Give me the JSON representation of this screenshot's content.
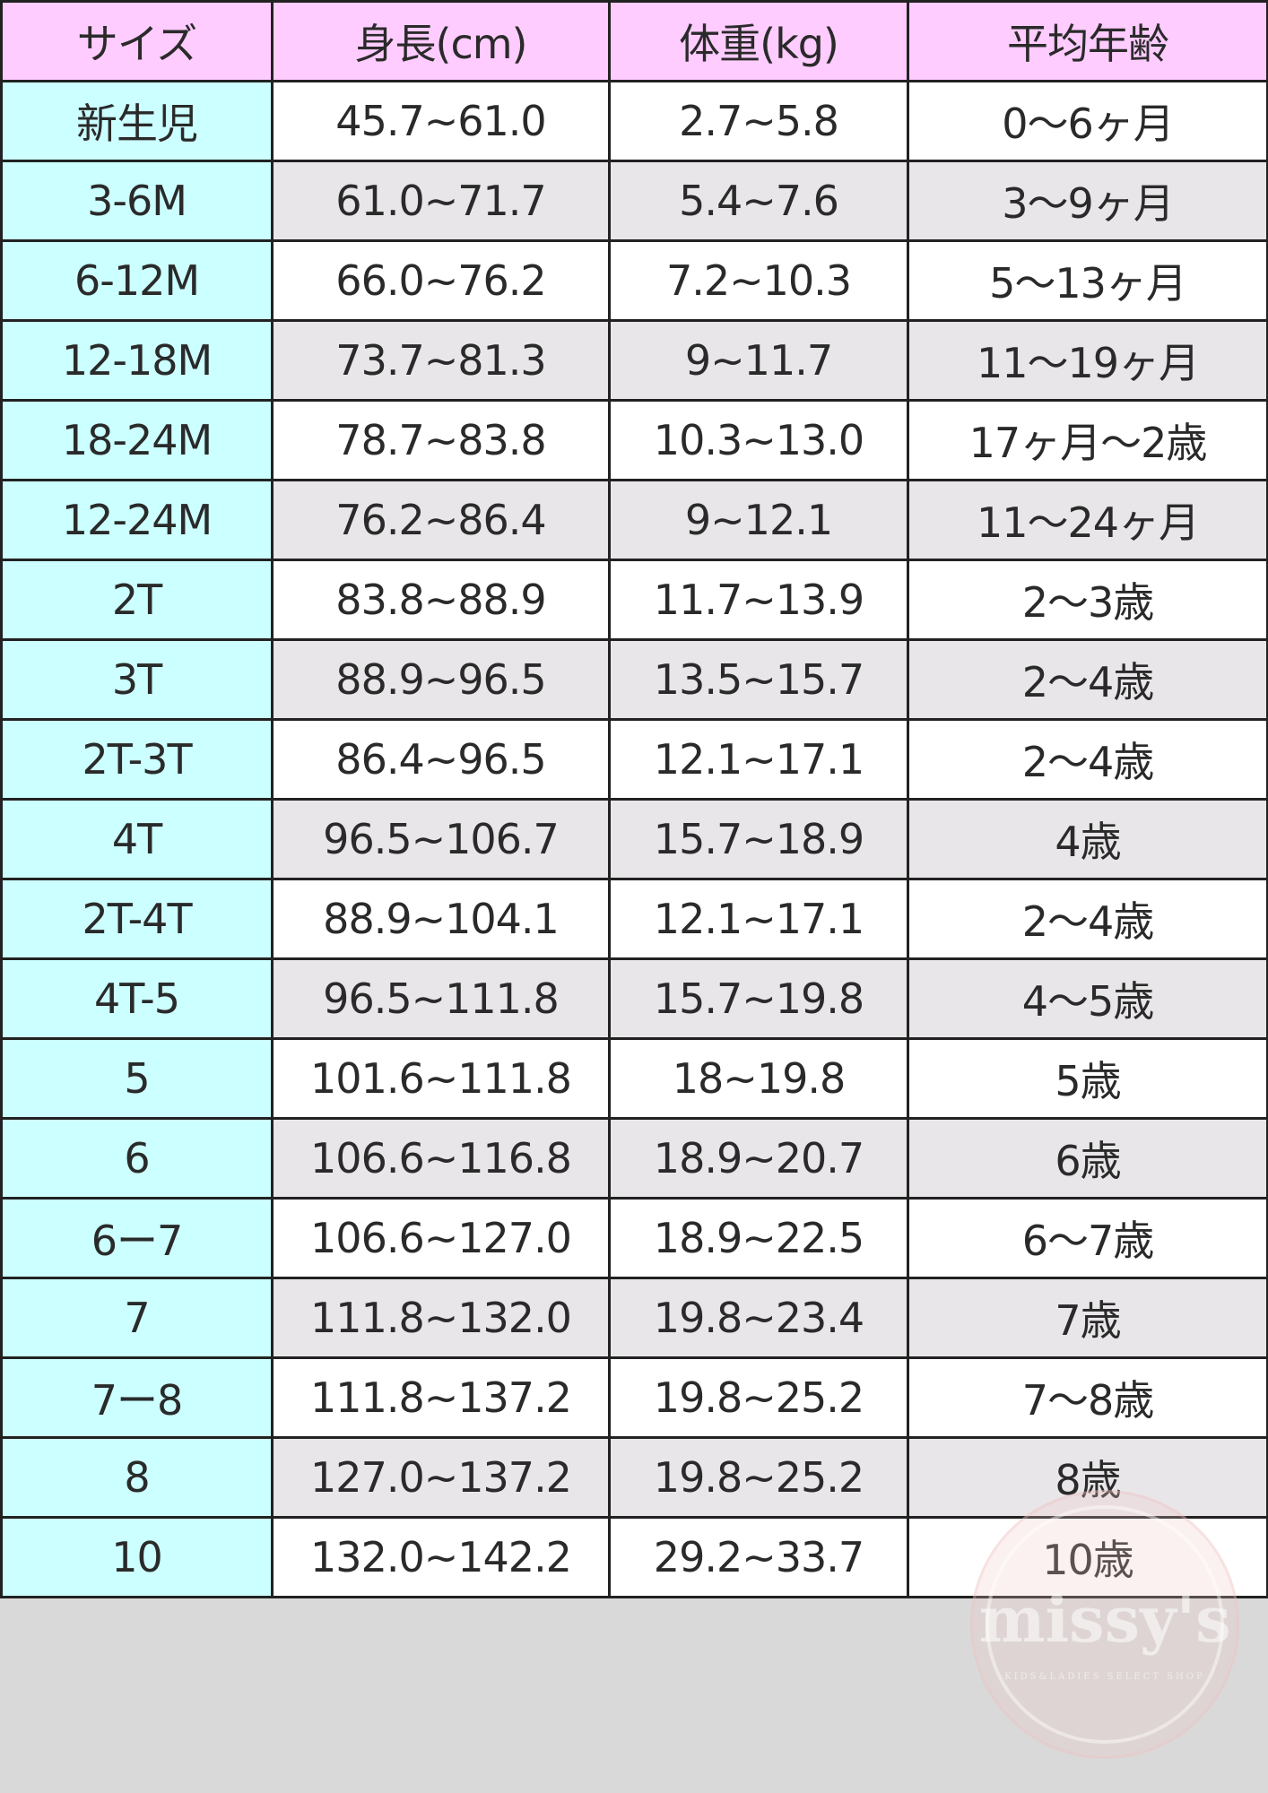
{
  "headers": [
    "サイズ",
    "身長(cm)",
    "体重(kg)",
    "平均年齢"
  ],
  "rows": [
    [
      "新生児",
      "45.7~61.0",
      "2.7~5.8",
      "0〜6ヶ月"
    ],
    [
      "3-6M",
      "61.0~71.7",
      "5.4~7.6",
      "3〜9ヶ月"
    ],
    [
      "6-12M",
      "66.0~76.2",
      "7.2~10.3",
      "5〜13ヶ月"
    ],
    [
      "12-18M",
      "73.7~81.3",
      "9~11.7",
      "11〜19ヶ月"
    ],
    [
      "18-24M",
      "78.7~83.8",
      "10.3~13.0",
      "17ヶ月〜2歳"
    ],
    [
      "12-24M",
      "76.2~86.4",
      "9~12.1",
      "11〜24ヶ月"
    ],
    [
      "2T",
      "83.8~88.9",
      "11.7~13.9",
      "2〜3歳"
    ],
    [
      "3T",
      "88.9~96.5",
      "13.5~15.7",
      "2〜4歳"
    ],
    [
      "2T-3T",
      "86.4~96.5",
      "12.1~17.1",
      "2〜4歳"
    ],
    [
      "4T",
      "96.5~106.7",
      "15.7~18.9",
      "4歳"
    ],
    [
      "2T-4T",
      "88.9~104.1",
      "12.1~17.1",
      "2〜4歳"
    ],
    [
      "4T-5",
      "96.5~111.8",
      "15.7~19.8",
      "4〜5歳"
    ],
    [
      "5",
      "101.6~111.8",
      "18~19.8",
      "5歳"
    ],
    [
      "6",
      "106.6~116.8",
      "18.9~20.7",
      "6歳"
    ],
    [
      "6ー7",
      "106.6~127.0",
      "18.9~22.5",
      "6〜7歳"
    ],
    [
      "7",
      "111.8~132.0",
      "19.8~23.4",
      "7歳"
    ],
    [
      "7ー8",
      "111.8~137.2",
      "19.8~25.2",
      "7〜8歳"
    ],
    [
      "8",
      "127.0~137.2",
      "19.8~25.2",
      "8歳"
    ],
    [
      "10",
      "132.0~142.2",
      "29.2~33.7",
      "10歳"
    ]
  ],
  "watermark": {
    "name": "missy's",
    "tagline": "KIDS&LADIES SELECT SHOP"
  },
  "colors": {
    "header": "#ffccff",
    "size_column": "#ccffff",
    "row_alt": "#e8e6e8",
    "row": "#ffffff",
    "background": "#d9d9d9"
  }
}
